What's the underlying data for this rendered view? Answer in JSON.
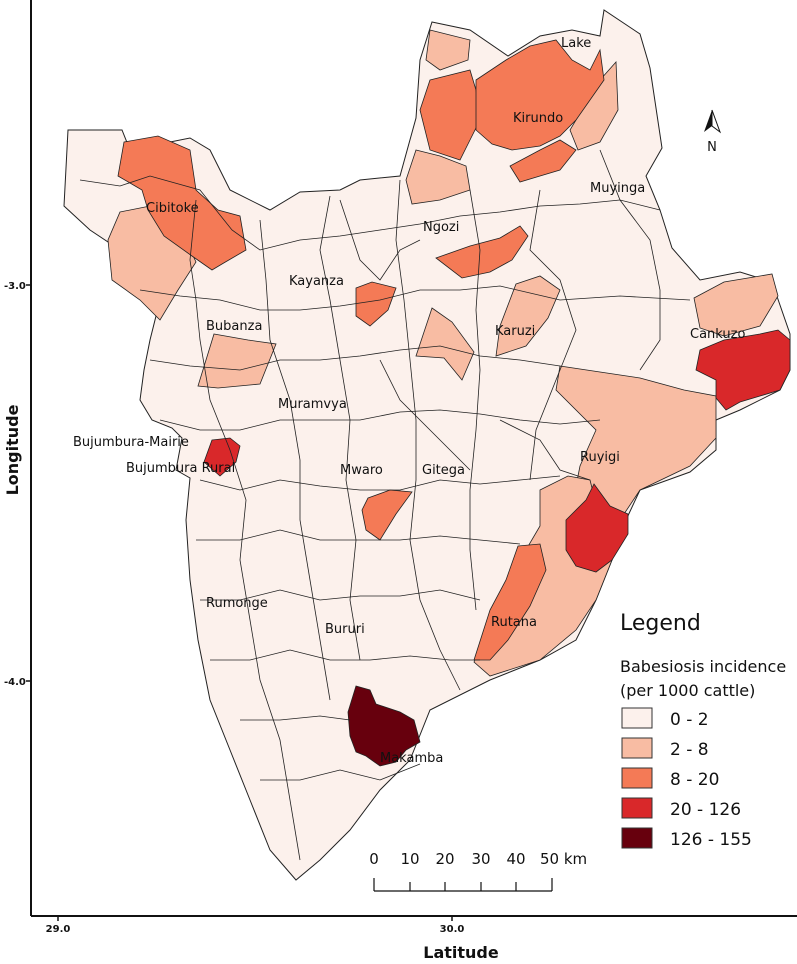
{
  "map": {
    "axes": {
      "x_title": "Latitude",
      "y_title": "Longitude",
      "x_ticks": [
        "29.0",
        "30.0"
      ],
      "y_ticks": [
        "-3.0",
        "-4.0"
      ]
    },
    "north_arrow": {
      "label": "N"
    },
    "place_labels": [
      "Lake",
      "Kirundo",
      "Muyinga",
      "Cibitoke",
      "Ngozi",
      "Kayanza",
      "Karuzi",
      "Bubanza",
      "Cankuzo",
      "Muramvya",
      "Bujumbura-Mairie",
      "Bujumbura Rural",
      "Mwaro",
      "Gitega",
      "Ruyigi",
      "Rumonge",
      "Bururi",
      "Rutana",
      "Makamba"
    ],
    "legend": {
      "title": "Legend",
      "subtitle_line1": "Babesiosis incidence",
      "subtitle_line2": "(per 1000 cattle)",
      "classes": [
        {
          "label": "0 - 2",
          "color": "#fcf1ec"
        },
        {
          "label": "2 - 8",
          "color": "#f8bca3"
        },
        {
          "label": "8 - 20",
          "color": "#f47a56"
        },
        {
          "label": "20 - 126",
          "color": "#d9282a"
        },
        {
          "label": "126 - 155",
          "color": "#67000d"
        }
      ]
    },
    "scale_bar": {
      "labels": [
        "0",
        "10",
        "20",
        "30",
        "40",
        "50 km"
      ]
    }
  }
}
